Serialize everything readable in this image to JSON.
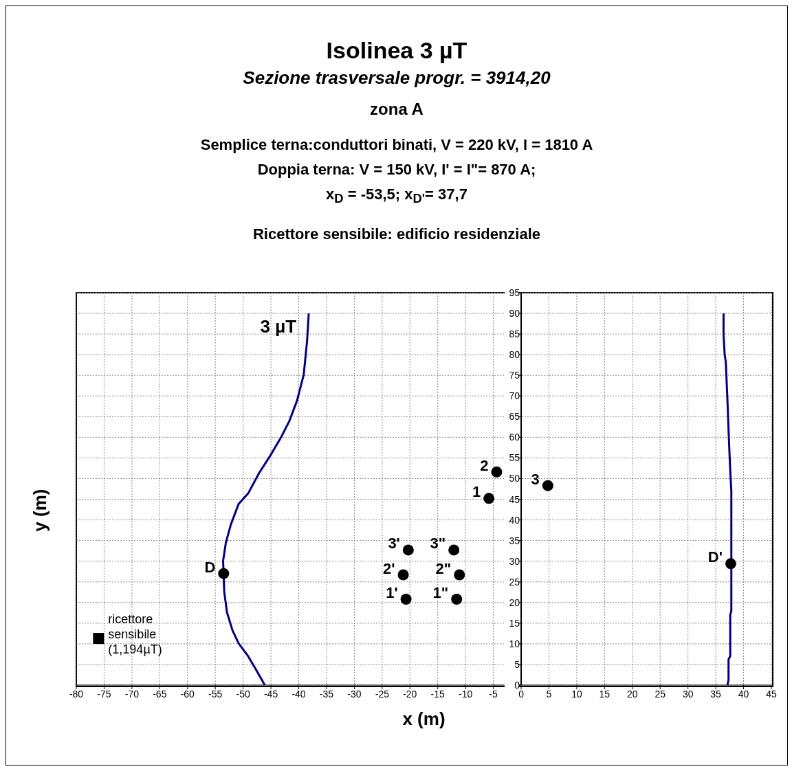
{
  "chart_data": {
    "type": "line",
    "title": "Isolinea 3 µT",
    "subtitle": "Sezione trasversale progr. = 3914,20",
    "annotations": [
      "zona A",
      "Semplice terna:conduttori binati, V = 220 kV, I = 1810 A",
      "Doppia terna: V = 150 kV, I' = I\"= 870 A;",
      "x$_{D}$ = -53,5; x$_{D'}$= 37,7",
      "Ricettore sensibile: edificio residenziale"
    ],
    "xlabel": "x (m)",
    "ylabel": "y (m)",
    "xlim": [
      -80,
      45
    ],
    "xticks": [
      -80,
      -75,
      -70,
      -65,
      -60,
      -55,
      -50,
      -45,
      -40,
      -35,
      -30,
      -25,
      -20,
      -15,
      -10,
      -5,
      0,
      5,
      10,
      15,
      20,
      25,
      30,
      35,
      40,
      45
    ],
    "ylim": [
      0,
      95
    ],
    "yticks": [
      0,
      5,
      10,
      15,
      20,
      25,
      30,
      35,
      40,
      45,
      50,
      55,
      60,
      65,
      70,
      75,
      80,
      85,
      90,
      95
    ],
    "grid": true,
    "legend": false,
    "series": [
      {
        "name": "3 µT",
        "color": "#000080",
        "marker": "none",
        "x": [
          -46.1,
          -47.7,
          -49.1,
          -50.8,
          -51.9,
          -52.9,
          -53.4,
          -53.6,
          -53.1,
          -52.2,
          -50.8,
          -49.1,
          -47.1,
          -45.0,
          -43.1,
          -41.7,
          -40.3,
          -39.1,
          -38.5,
          -38.2
        ],
        "values": [
          0,
          3.8,
          7.0,
          10.1,
          13.2,
          17.6,
          22.6,
          30.1,
          34.5,
          38.9,
          43.9,
          46.4,
          51.4,
          55.8,
          60.2,
          63.9,
          68.9,
          75.2,
          83.3,
          90
        ]
      },
      {
        "color": "#000080",
        "marker": "none",
        "x": [
          37.1,
          37.3,
          37.3,
          37.6,
          37.6,
          37.8,
          37.8,
          37.6,
          37.4,
          37.1,
          36.8,
          36.6,
          36.4,
          36.4
        ],
        "values": [
          0,
          1.3,
          6.3,
          7,
          17,
          18,
          47,
          52,
          58.3,
          68.9,
          78.3,
          80,
          85,
          90
        ]
      },
      {
        "name": "D",
        "type": "scatter",
        "color": "#000000",
        "marker": "circle",
        "x": [
          -53.5
        ],
        "values": [
          27
        ]
      },
      {
        "name": "D'",
        "type": "scatter",
        "color": "#000000",
        "marker": "circle",
        "x": [
          37.7
        ],
        "values": [
          29.4
        ]
      },
      {
        "name": "1",
        "type": "scatter",
        "color": "#000000",
        "marker": "circle",
        "x": [
          -5.8
        ],
        "values": [
          45.2
        ]
      },
      {
        "name": "2",
        "type": "scatter",
        "color": "#000000",
        "marker": "circle",
        "x": [
          -4.4
        ],
        "values": [
          51.6
        ]
      },
      {
        "name": "3",
        "type": "scatter",
        "color": "#000000",
        "marker": "circle",
        "x": [
          4.8
        ],
        "values": [
          48.3
        ]
      },
      {
        "name": "1'",
        "type": "scatter",
        "color": "#000000",
        "marker": "circle",
        "x": [
          -20.7
        ],
        "values": [
          20.8
        ]
      },
      {
        "name": "2'",
        "type": "scatter",
        "color": "#000000",
        "marker": "circle",
        "x": [
          -21.2
        ],
        "values": [
          26.7
        ]
      },
      {
        "name": "3'",
        "type": "scatter",
        "color": "#000000",
        "marker": "circle",
        "x": [
          -20.3
        ],
        "values": [
          32.7
        ]
      },
      {
        "name": "1\"",
        "type": "scatter",
        "color": "#000000",
        "marker": "circle",
        "x": [
          -11.6
        ],
        "values": [
          20.8
        ]
      },
      {
        "name": "2\"",
        "type": "scatter",
        "color": "#000000",
        "marker": "circle",
        "x": [
          -11.1
        ],
        "values": [
          26.7
        ]
      },
      {
        "name": "3\"",
        "type": "scatter",
        "color": "#000000",
        "marker": "circle",
        "x": [
          -12.1
        ],
        "values": [
          32.7
        ]
      },
      {
        "name": "ricettore sensibile (1,194µT)",
        "type": "scatter",
        "color": "#000000",
        "marker": "square",
        "x": [
          -76
        ],
        "values": [
          11.3
        ]
      }
    ]
  }
}
